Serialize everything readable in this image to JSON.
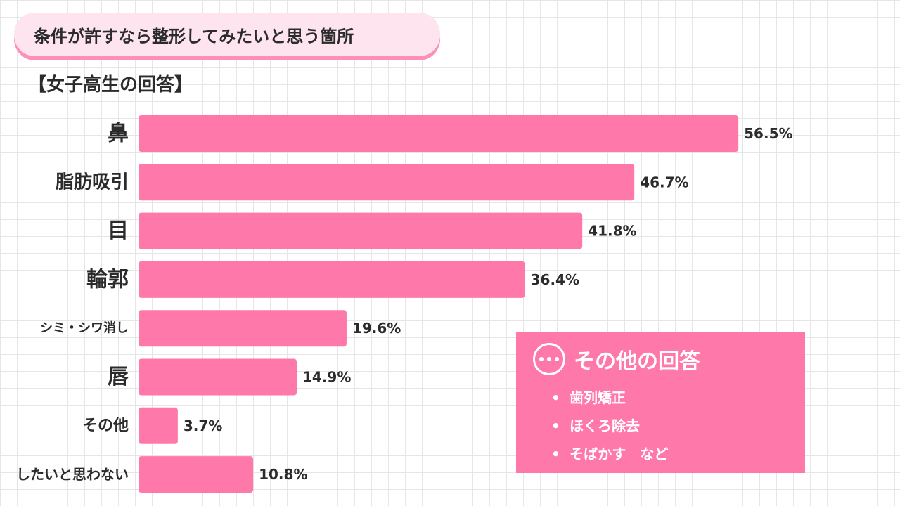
{
  "title": "条件が許すなら整形してみたいと思う箇所",
  "subtitle": "【女子高生の回答】",
  "chart_data": {
    "type": "bar",
    "orientation": "horizontal",
    "categories": [
      "鼻",
      "脂肪吸引",
      "目",
      "輪郭",
      "シミ・シワ消し",
      "唇",
      "その他",
      "したいと思わない"
    ],
    "values": [
      56.5,
      46.7,
      41.8,
      36.4,
      19.6,
      14.9,
      3.7,
      10.8
    ],
    "value_labels": [
      "56.5%",
      "46.7%",
      "41.8%",
      "36.4%",
      "19.6%",
      "14.9%",
      "3.7%",
      "10.8%"
    ],
    "bar_color": "#ff78aa",
    "grid": true
  },
  "other_answers": {
    "heading": "その他の回答",
    "icon": "ellipsis-circle-icon",
    "items": [
      "歯列矯正",
      "ほくろ除去",
      "そばかす　など"
    ]
  }
}
